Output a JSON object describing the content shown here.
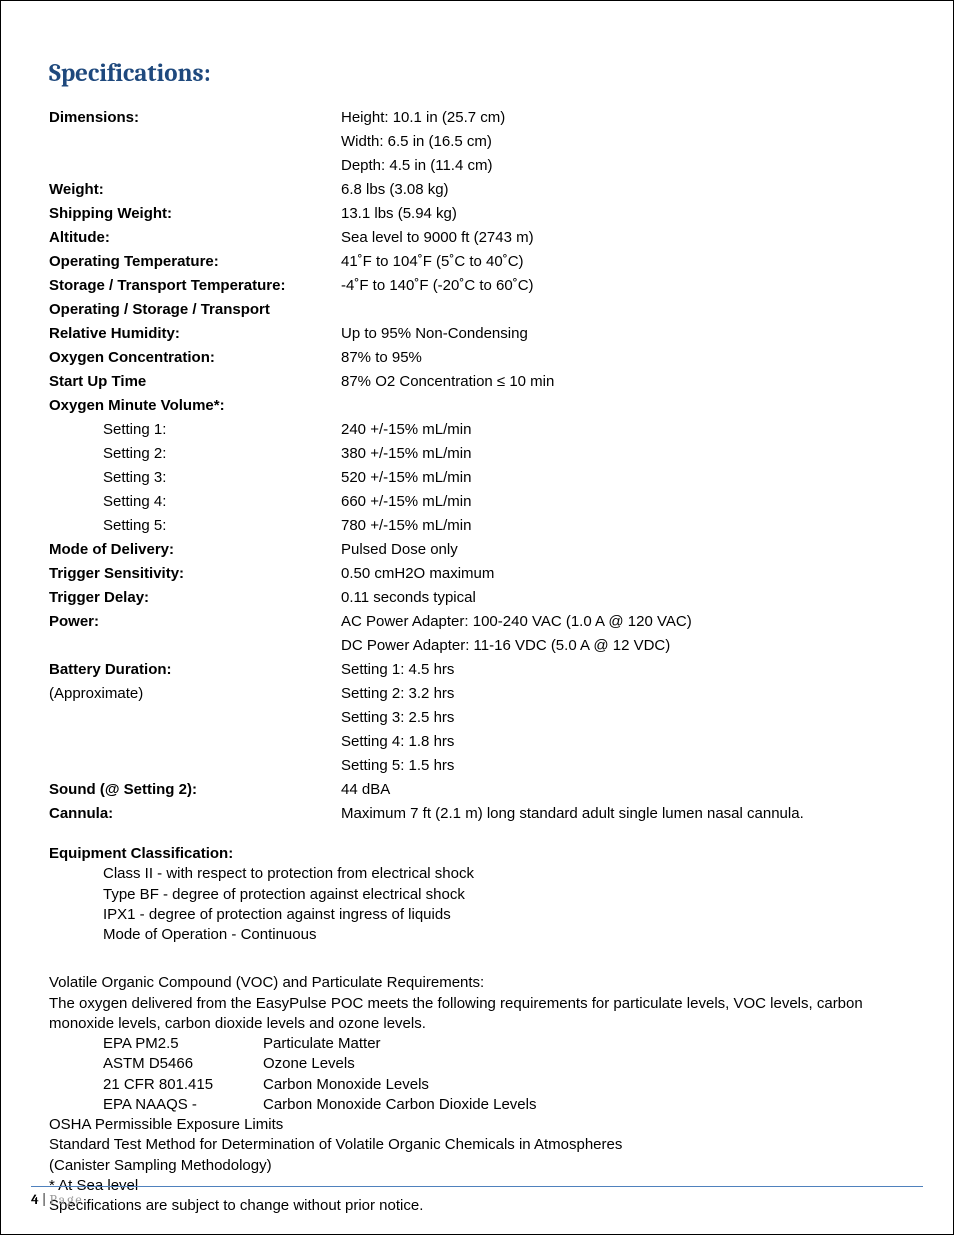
{
  "colors": {
    "heading": "#1f497d",
    "footer_rule": "#4f81bd",
    "footer_word": "#999999",
    "text": "#000000",
    "background": "#ffffff"
  },
  "typography": {
    "body_font": "Arial",
    "heading_font": "Cambria",
    "body_size_pt": 11,
    "heading_size_pt": 18
  },
  "heading": "Specifications:",
  "specs": [
    {
      "label": "Dimensions:",
      "value": "Height: 10.1 in (25.7 cm)"
    },
    {
      "label": "",
      "value": "Width: 6.5 in (16.5 cm)"
    },
    {
      "label": "",
      "value": "Depth: 4.5 in (11.4 cm)"
    },
    {
      "label": "Weight:",
      "value": "6.8 lbs (3.08 kg)"
    },
    {
      "label": "Shipping Weight:",
      "value": "13.1 lbs (5.94 kg)"
    },
    {
      "label": "Altitude:",
      "value": "Sea level to 9000 ft (2743 m)"
    },
    {
      "label": "Operating Temperature:",
      "value": "41˚F to 104˚F (5˚C to 40˚C)"
    },
    {
      "label": "Storage / Transport Temperature:",
      "value": "-4˚F to 140˚F (-20˚C to 60˚C)"
    },
    {
      "label": "Operating / Storage / Transport",
      "value": ""
    },
    {
      "label": "Relative Humidity:",
      "value": "Up to 95% Non-Condensing"
    },
    {
      "label": "Oxygen Concentration:",
      "value": "87% to 95%"
    },
    {
      "label": "Start Up Time",
      "value": "87% O2 Concentration ≤ 10 min"
    },
    {
      "label": "Oxygen Minute Volume*:",
      "value": ""
    },
    {
      "label": "Setting 1:",
      "value": "240 +/-15% mL/min",
      "indent": true
    },
    {
      "label": "Setting 2:",
      "value": "380 +/-15% mL/min",
      "indent": true
    },
    {
      "label": "Setting 3:",
      "value": "520 +/-15% mL/min",
      "indent": true
    },
    {
      "label": "Setting 4:",
      "value": "660 +/-15% mL/min",
      "indent": true
    },
    {
      "label": "Setting 5:",
      "value": "780 +/-15% mL/min",
      "indent": true
    },
    {
      "label": "Mode of Delivery:",
      "value": "Pulsed Dose only"
    },
    {
      "label": "Trigger Sensitivity:",
      "value": "0.50 cmH2O maximum"
    },
    {
      "label": "Trigger Delay:",
      "value": "0.11 seconds typical"
    },
    {
      "label": "Power:",
      "value": "AC Power Adapter: 100-240 VAC (1.0 A @ 120 VAC)"
    },
    {
      "label": "",
      "value": "DC Power Adapter: 11-16 VDC (5.0 A @ 12 VDC)"
    },
    {
      "label": "Battery Duration:",
      "value": "Setting 1: 4.5 hrs"
    },
    {
      "label": "(Approximate)",
      "value": "Setting 2: 3.2 hrs",
      "sub": true
    },
    {
      "label": "",
      "value": "Setting 3: 2.5 hrs"
    },
    {
      "label": "",
      "value": "Setting 4: 1.8 hrs"
    },
    {
      "label": "",
      "value": "Setting 5: 1.5 hrs"
    },
    {
      "label": "Sound (@ Setting 2):",
      "value": "44 dBA"
    },
    {
      "label": "Cannula:",
      "value": "Maximum 7 ft (2.1 m) long standard adult single lumen nasal cannula."
    }
  ],
  "equipment": {
    "title": "Equipment Classification:",
    "lines": [
      "Class II - with respect to protection from electrical shock",
      "Type BF - degree of protection against electrical shock",
      "IPX1 - degree of protection against ingress of liquids",
      "Mode of Operation - Continuous"
    ]
  },
  "voc": {
    "intro1": "Volatile Organic Compound (VOC) and Particulate Requirements:",
    "intro2": "The oxygen delivered from the EasyPulse POC meets the following requirements for particulate levels, VOC levels, carbon monoxide levels, carbon dioxide levels and ozone levels.",
    "standards": [
      {
        "std": "EPA PM2.5",
        "desc": "Particulate Matter"
      },
      {
        "std": "ASTM D5466",
        "desc": "Ozone Levels"
      },
      {
        "std": "21 CFR 801.415",
        "desc": "Carbon Monoxide Levels"
      },
      {
        "std": "EPA NAAQS -",
        "desc": "Carbon Monoxide   Carbon Dioxide Levels"
      }
    ],
    "tail": [
      "OSHA Permissible Exposure Limits",
      "Standard Test Method for Determination of Volatile Organic Chemicals in Atmospheres",
      "(Canister Sampling Methodology)",
      "* At Sea level",
      "Specifications are subject to change without prior notice."
    ]
  },
  "footer": {
    "page_number": "4",
    "separator": " | ",
    "word": "Page"
  }
}
